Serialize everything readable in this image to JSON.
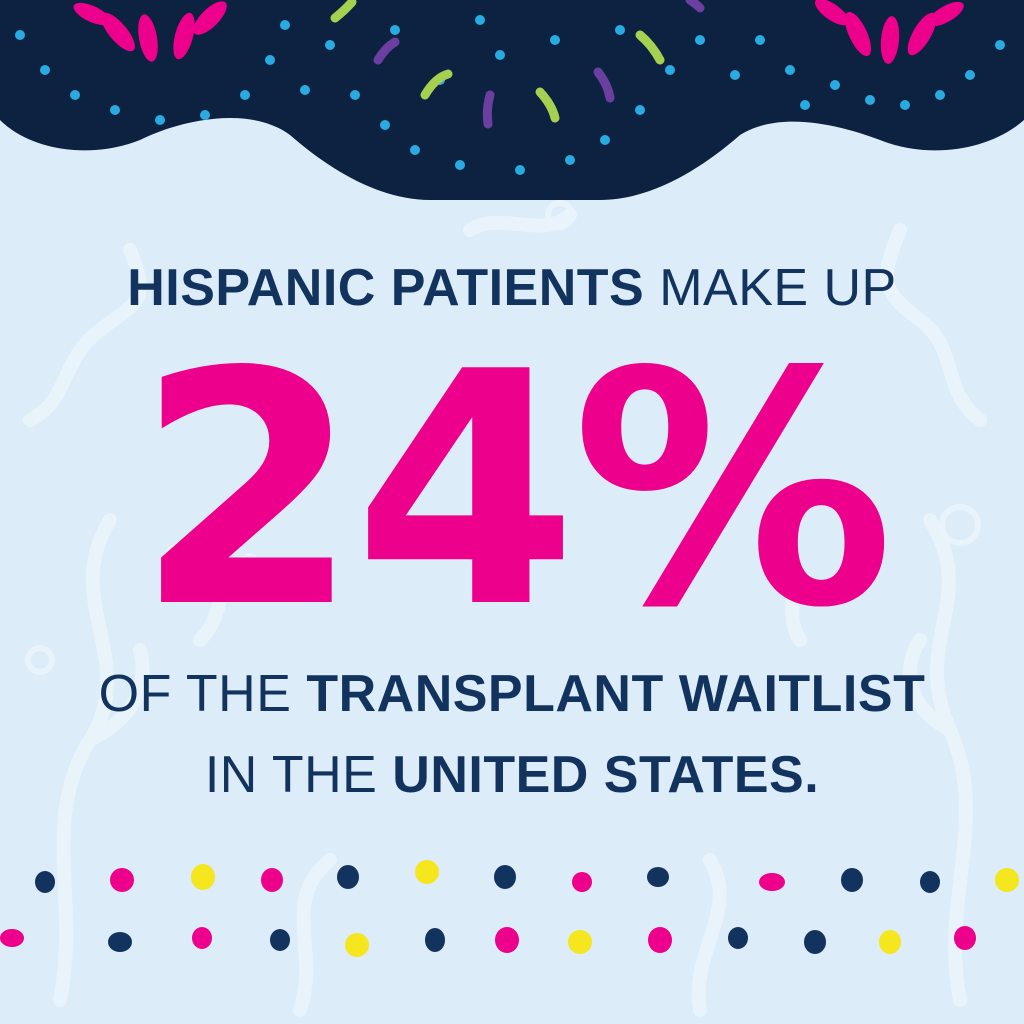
{
  "headline": {
    "line1_bold": "HISPANIC PATIENTS",
    "line1_regular": "MAKE UP",
    "big_stat": "24%",
    "line3_regular": "OF THE",
    "line3_bold": "TRANSPLANT WAITLIST",
    "line4_regular": "IN THE",
    "line4_bold": "UNITED STATES."
  },
  "colors": {
    "background": "#dcecf8",
    "navy": "#13335f",
    "scallop": "#0d2240",
    "pink": "#ec008c",
    "yellow": "#f5e61e",
    "light_blue": "#29abe2",
    "lime": "#a6d04f",
    "purple": "#6b3fa0"
  },
  "decor": {
    "top_border": "scalloped-flower-border",
    "bottom_border": "confetti-dot-rows"
  }
}
